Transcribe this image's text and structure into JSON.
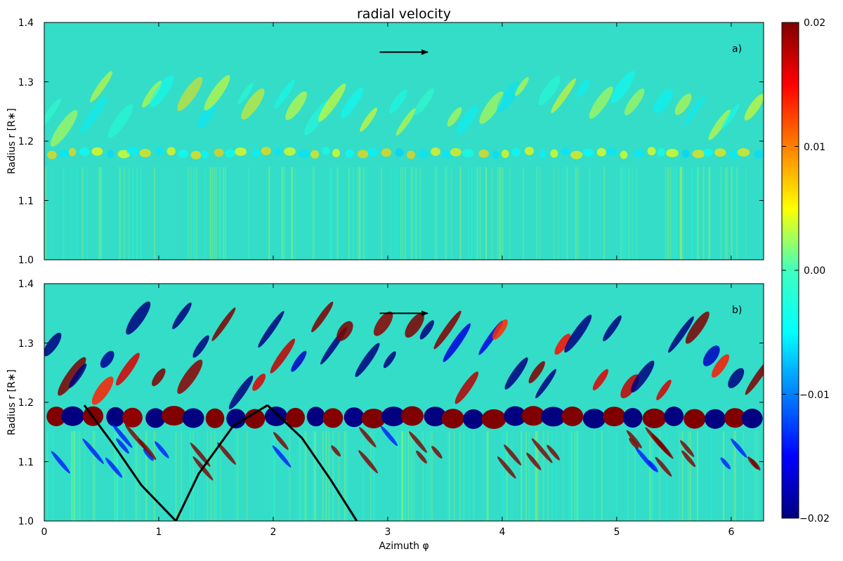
{
  "chart_data": {
    "type": "heatmap",
    "title": "radial velocity",
    "xlabel": "Azimuth φ",
    "xlim": [
      0,
      6.2832
    ],
    "xticks": [
      "0",
      "1",
      "2",
      "3",
      "4",
      "5",
      "6"
    ],
    "colorbar": {
      "range": [
        -0.02,
        0.02
      ],
      "ticks": [
        "0.02",
        "0.01",
        "0.00",
        "−0.01",
        "−0.02"
      ],
      "colormap": "jet"
    },
    "panels": [
      {
        "label": "a)",
        "ylabel": "Radius r [R∗]",
        "ylim": [
          1.0,
          1.4
        ],
        "yticks": [
          "1.4",
          "1.3",
          "1.2",
          "1.1",
          "1.0"
        ],
        "wave_band_center_r": 1.18,
        "amplitude_scale": 0.35,
        "arrow": {
          "from_phi": 2.93,
          "to_phi": 3.35,
          "r": 1.35
        },
        "characteristic_curves": []
      },
      {
        "label": "b)",
        "ylabel": "Radius r [R∗]",
        "ylim": [
          1.0,
          1.4
        ],
        "yticks": [
          "1.4",
          "1.3",
          "1.2",
          "1.1",
          "1.0"
        ],
        "wave_band_center_r": 1.175,
        "amplitude_scale": 1.6,
        "arrow": {
          "from_phi": 2.93,
          "to_phi": 3.35,
          "r": 1.35
        },
        "characteristic_curves": [
          [
            [
              0.35,
              1.195
            ],
            [
              0.6,
              1.13
            ],
            [
              0.85,
              1.06
            ],
            [
              1.15,
              1.0
            ]
          ],
          [
            [
              1.15,
              1.0
            ],
            [
              1.35,
              1.08
            ],
            [
              1.65,
              1.16
            ],
            [
              1.95,
              1.195
            ]
          ],
          [
            [
              1.95,
              1.195
            ],
            [
              2.25,
              1.14
            ],
            [
              2.5,
              1.07
            ],
            [
              2.73,
              1.0
            ]
          ]
        ]
      }
    ]
  },
  "colors": {
    "field_background": "#33ddc8",
    "curve": "#000000"
  }
}
